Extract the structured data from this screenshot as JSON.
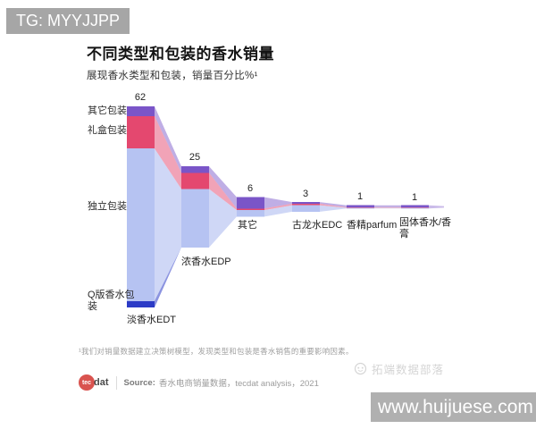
{
  "overlay": {
    "tag": "TG: MYYJJPP",
    "brand": "拓端数据部落",
    "url": "www.huijuese.com"
  },
  "header": {
    "title": "不同类型和包装的香水销量",
    "subtitle": "展现香水类型和包装，销量百分比%¹"
  },
  "footnote": "¹我们对销量数据建立决策树模型，发现类型和包装是香水销售的重要影响因素。",
  "source": {
    "logo_tec": "tec",
    "logo_dat": "dat",
    "label": "Source:",
    "text": "香水电商销量数据，tecdat analysis，2021"
  },
  "chart_data": {
    "type": "bar",
    "variant": "centered-cascade-flow",
    "title": "不同类型和包装的香水销量",
    "subtitle": "展现香水类型和包装，销量百分比%¹",
    "unit": "%",
    "grid": false,
    "legend_position": "inline-left",
    "categories": [
      "淡香水EDT",
      "浓香水EDP",
      "其它",
      "古龙水EDC",
      "香精parfum",
      "固体香水/香膏"
    ],
    "values": [
      62,
      25,
      6,
      3,
      1,
      1
    ],
    "series": [
      {
        "name": "其它包装",
        "color": "#7a55c8",
        "values": [
          3,
          2,
          3.5,
          0.5,
          0.6,
          0.6
        ]
      },
      {
        "name": "礼盒包装",
        "color": "#e4486f",
        "values": [
          10,
          5,
          0.5,
          0.5,
          0.2,
          0.2
        ]
      },
      {
        "name": "独立包装",
        "color": "#b6c3f2",
        "values": [
          47,
          18,
          2,
          2,
          0.2,
          0.2
        ]
      },
      {
        "name": "Q版香水包装",
        "color": "#2c3bc6",
        "values": [
          2,
          0,
          0,
          0,
          0,
          0
        ]
      }
    ]
  }
}
